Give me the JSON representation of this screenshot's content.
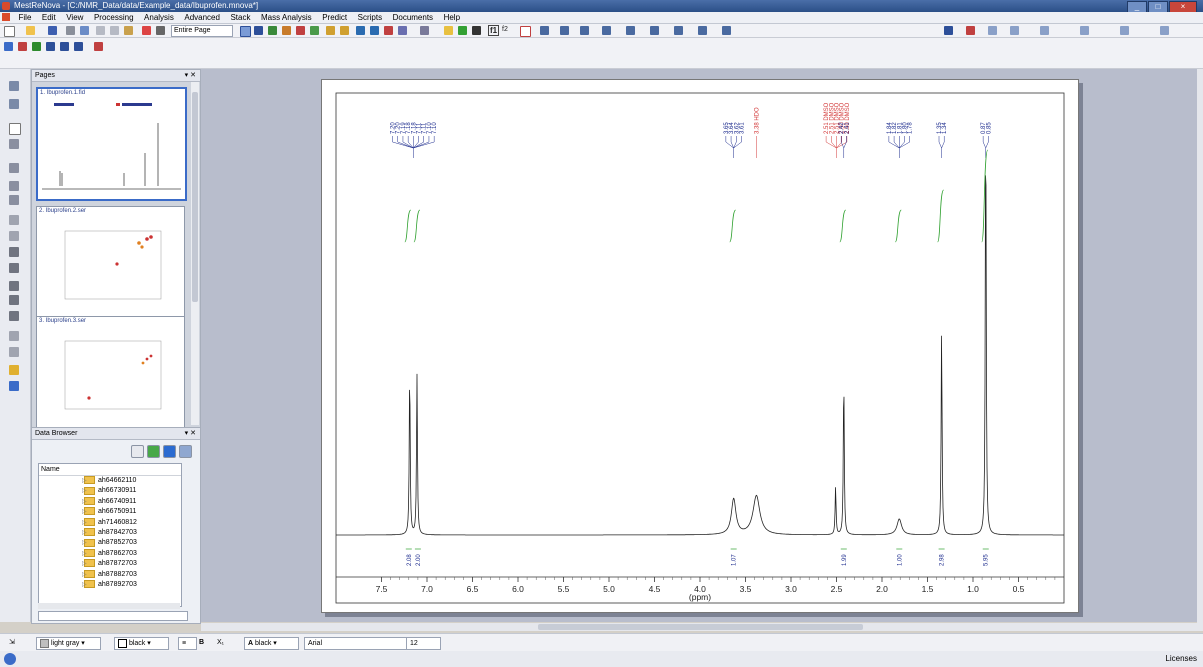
{
  "window": {
    "title": "MestReNova - [C:/NMR_Data/data/Example_data/Ibuprofen.mnova*]",
    "buttons": [
      "_",
      "□",
      "×"
    ]
  },
  "menu": [
    "File",
    "Edit",
    "View",
    "Processing",
    "Analysis",
    "Advanced",
    "Stack",
    "Mass Analysis",
    "Predict",
    "Scripts",
    "Documents",
    "Help"
  ],
  "toolbar": {
    "page_mode": "Entire Page",
    "f1_label": "f1",
    "f2_label": "f2"
  },
  "pages_panel": {
    "title": "Pages",
    "items": [
      {
        "label": "1. Ibuprofen.1.fid"
      },
      {
        "label": "2. Ibuprofen.2.ser"
      },
      {
        "label": "3. Ibuprofen.3.ser"
      }
    ]
  },
  "data_browser": {
    "title": "Data Browser",
    "column": "Name",
    "items": [
      "ah64662110",
      "ah66730911",
      "ah66740911",
      "ah66750911",
      "ah71460812",
      "ah87842703",
      "ah87852703",
      "ah87862703",
      "ah87872703",
      "ah87882703",
      "ah87892703"
    ]
  },
  "spectrum": {
    "xlabel": "(ppm)",
    "xlim": [
      8.0,
      0.0
    ],
    "ticks": [
      7.5,
      7.0,
      6.5,
      6.0,
      5.5,
      5.0,
      4.5,
      4.0,
      3.5,
      3.0,
      2.5,
      2.0,
      1.5,
      1.0,
      0.5
    ],
    "peak_labels": [
      {
        "group": "aromatic",
        "color": "#1f2e8f",
        "ppm_center": 7.15,
        "labels": [
          "7.20",
          "7.20",
          "7.19",
          "7.18",
          "7.18",
          "7.11",
          "7.11",
          "7.10",
          "7.10"
        ]
      },
      {
        "group": "ch",
        "color": "#1f2e8f",
        "ppm_center": 3.63,
        "labels": [
          "3.65",
          "3.64",
          "3.62",
          "3.61"
        ]
      },
      {
        "group": "hdo",
        "color": "#d33a3a",
        "ppm_center": 3.38,
        "labels": [
          "3.38 HDO"
        ]
      },
      {
        "group": "dmso",
        "color": "#d33a3a",
        "ppm_center": 2.5,
        "labels": [
          "2.51 DMSO",
          "2.51 DMSO",
          "2.51 DMSO",
          "2.50 DMSO",
          "2.50 DMSO"
        ]
      },
      {
        "group": "ch2",
        "color": "#1f2e8f",
        "ppm_center": 2.42,
        "labels": [
          "2.42",
          "2.41"
        ]
      },
      {
        "group": "ch_iso",
        "color": "#1f2e8f",
        "ppm_center": 1.81,
        "labels": [
          "1.84",
          "1.82",
          "1.81",
          "1.80",
          "1.78"
        ]
      },
      {
        "group": "ch3_d",
        "color": "#1f2e8f",
        "ppm_center": 1.345,
        "labels": [
          "1.35",
          "1.34"
        ]
      },
      {
        "group": "ch3_iso",
        "color": "#1f2e8f",
        "ppm_center": 0.86,
        "labels": [
          "0.87",
          "0.85"
        ]
      }
    ],
    "integrals": [
      {
        "ppm": 7.2,
        "value": "2.08"
      },
      {
        "ppm": 7.1,
        "value": "2.00"
      },
      {
        "ppm": 3.63,
        "value": "1.07"
      },
      {
        "ppm": 2.42,
        "value": "1.99"
      },
      {
        "ppm": 1.81,
        "value": "1.00"
      },
      {
        "ppm": 1.345,
        "value": "2.98"
      },
      {
        "ppm": 0.86,
        "value": "5.95"
      }
    ],
    "peaks": [
      {
        "ppm": 7.19,
        "height": 0.93
      },
      {
        "ppm": 7.11,
        "height": 0.9
      },
      {
        "ppm": 3.63,
        "height": 0.2
      },
      {
        "ppm": 3.38,
        "height": 0.22
      },
      {
        "ppm": 2.51,
        "height": 0.27
      },
      {
        "ppm": 2.42,
        "height": 0.9
      },
      {
        "ppm": 1.81,
        "height": 0.09
      },
      {
        "ppm": 1.345,
        "height": 1.16
      },
      {
        "ppm": 0.86,
        "height": 2.41
      }
    ]
  },
  "bottom_toolbar": {
    "fill_color": "light gray",
    "line_color": "black",
    "text_color": "black",
    "font": "Arial",
    "font_size": "12"
  },
  "status": {
    "license": "Licenses"
  },
  "colors": {
    "peak_label": "#1f2e8f",
    "solvent_label": "#d33a3a",
    "integral_curve": "#2ea02e",
    "spectrum_line": "#222222"
  }
}
